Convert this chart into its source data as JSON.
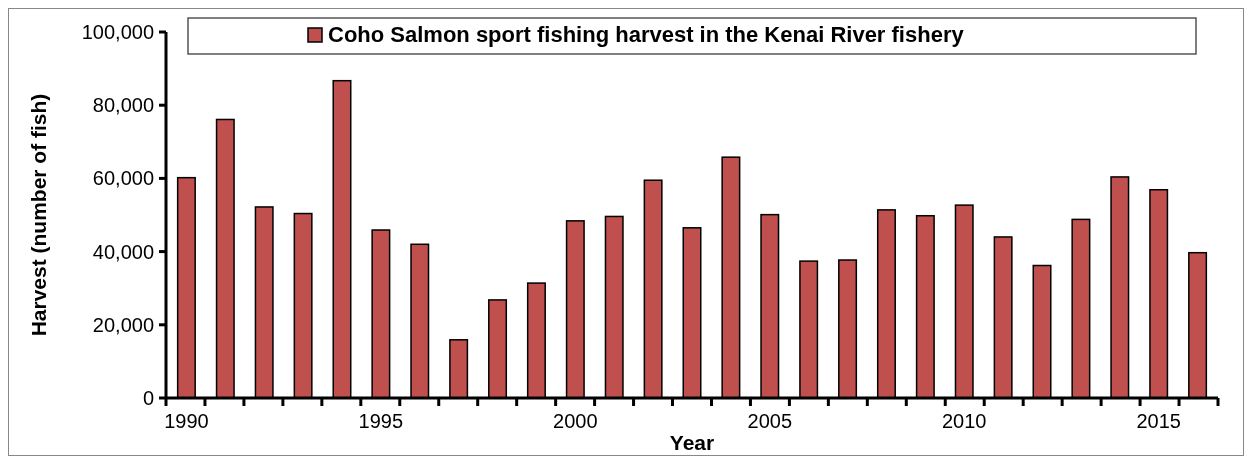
{
  "chart_data": {
    "type": "bar",
    "xlabel": "Year",
    "ylabel": "Harvest (number of fish)",
    "categories": [
      "1990",
      null,
      null,
      null,
      null,
      "1995",
      null,
      null,
      null,
      null,
      "2000",
      null,
      null,
      null,
      null,
      "2005",
      null,
      null,
      null,
      null,
      "2010",
      null,
      null,
      null,
      null,
      "2015",
      null
    ],
    "series": [
      {
        "name": "Coho Salmon sport fishing harvest in the Kenai River fishery",
        "color": "#c0504d",
        "values": [
          60200,
          76100,
          52200,
          50400,
          86700,
          45900,
          42000,
          15900,
          26800,
          31400,
          48400,
          49600,
          59500,
          46500,
          65800,
          50100,
          37400,
          37700,
          51400,
          49800,
          52700,
          44000,
          36200,
          48800,
          60400,
          56900,
          39700
        ]
      }
    ],
    "ylim": [
      0,
      100000
    ],
    "yticks": [
      {
        "value": 0,
        "label": "0"
      },
      {
        "value": 20000,
        "label": "20,000"
      },
      {
        "value": 40000,
        "label": "40,000"
      },
      {
        "value": 60000,
        "label": "60,000"
      },
      {
        "value": 80000,
        "label": "80,000"
      },
      {
        "value": 100000,
        "label": "100,000"
      }
    ],
    "grid": false,
    "legend": "top"
  }
}
